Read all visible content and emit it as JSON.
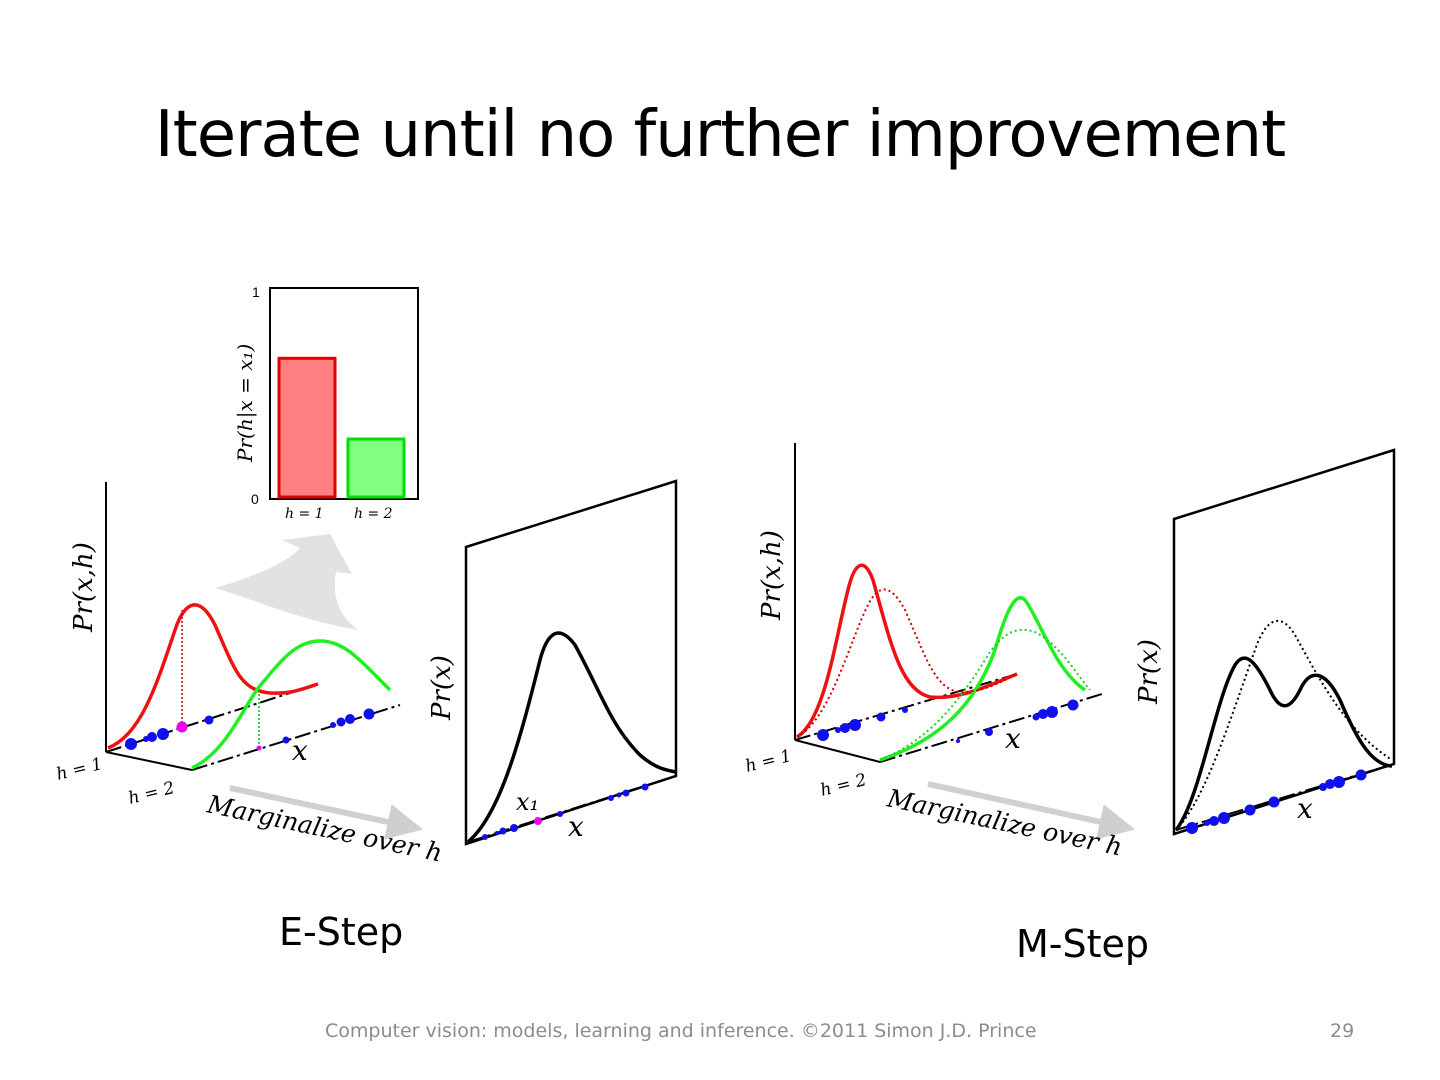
{
  "slide": {
    "title": "Iterate until no further improvement",
    "footer": "Computer vision: models, learning and inference.  ©2011 Simon J.D. Prince",
    "page_number": "29"
  },
  "estep": {
    "caption": "E-Step",
    "joint_ylabel": "Pr(x,h)",
    "h1_label": "h = 1",
    "h2_label": "h = 2",
    "x_label": "x",
    "arrow_label": "Marginalize over h",
    "marginal_ylabel": "Pr(x)",
    "marginal_xlabel": "x",
    "x1_label": "x₁",
    "posterior": {
      "ylabel": "Pr(h|x = x₁)",
      "ytick_max": "1",
      "ytick_min": "0",
      "categories": [
        "h = 1",
        "h = 2"
      ],
      "values": [
        0.67,
        0.28
      ],
      "colors": [
        "#ff8080",
        "#80ff80"
      ],
      "edge_colors": [
        "#e00000",
        "#00e000"
      ]
    }
  },
  "mstep": {
    "caption": "M-Step",
    "joint_ylabel": "Pr(x,h)",
    "h1_label": "h = 1",
    "h2_label": "h = 2",
    "x_label": "x",
    "arrow_label": "Marginalize over h",
    "marginal_ylabel": "Pr(x)",
    "marginal_xlabel": "x"
  },
  "colors": {
    "h1_curve": "#ee1111",
    "h2_curve": "#22ee22",
    "data_points": "#1010ee",
    "highlight_point": "#ee00ee",
    "marginal_curve": "#000000",
    "arrow": "#d8d8d8"
  }
}
